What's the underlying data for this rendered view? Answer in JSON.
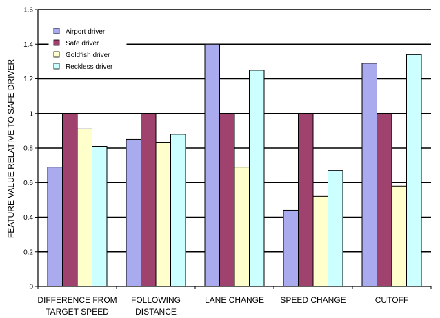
{
  "chart_data": {
    "type": "bar",
    "ylabel": "FEATURE VALUE RELATIVE TO SAFE DRIVER",
    "ylim": [
      0,
      1.6
    ],
    "yticks": [
      "0",
      "0.2",
      "0.4",
      "0.6",
      "0.8",
      "1",
      "1.2",
      "1.4",
      "1.6"
    ],
    "grid": true,
    "legend_position": "top-left",
    "categories": [
      [
        "DIFFERENCE FROM",
        "TARGET SPEED"
      ],
      [
        "FOLLOWING",
        "DISTANCE"
      ],
      [
        "LANE CHANGE"
      ],
      [
        "SPEED CHANGE"
      ],
      [
        "CUTOFF"
      ]
    ],
    "series": [
      {
        "name": "Airport driver",
        "color": "#aaaaee",
        "values": [
          0.69,
          0.85,
          1.4,
          0.44,
          1.29
        ]
      },
      {
        "name": "Safe driver",
        "color": "#a0426e",
        "values": [
          1.0,
          1.0,
          1.0,
          1.0,
          1.0
        ]
      },
      {
        "name": "Goldfish driver",
        "color": "#ffffcc",
        "values": [
          0.91,
          0.83,
          0.69,
          0.52,
          0.58
        ]
      },
      {
        "name": "Reckless driver",
        "color": "#ccffff",
        "values": [
          0.81,
          0.88,
          1.25,
          0.67,
          1.34
        ]
      }
    ]
  }
}
